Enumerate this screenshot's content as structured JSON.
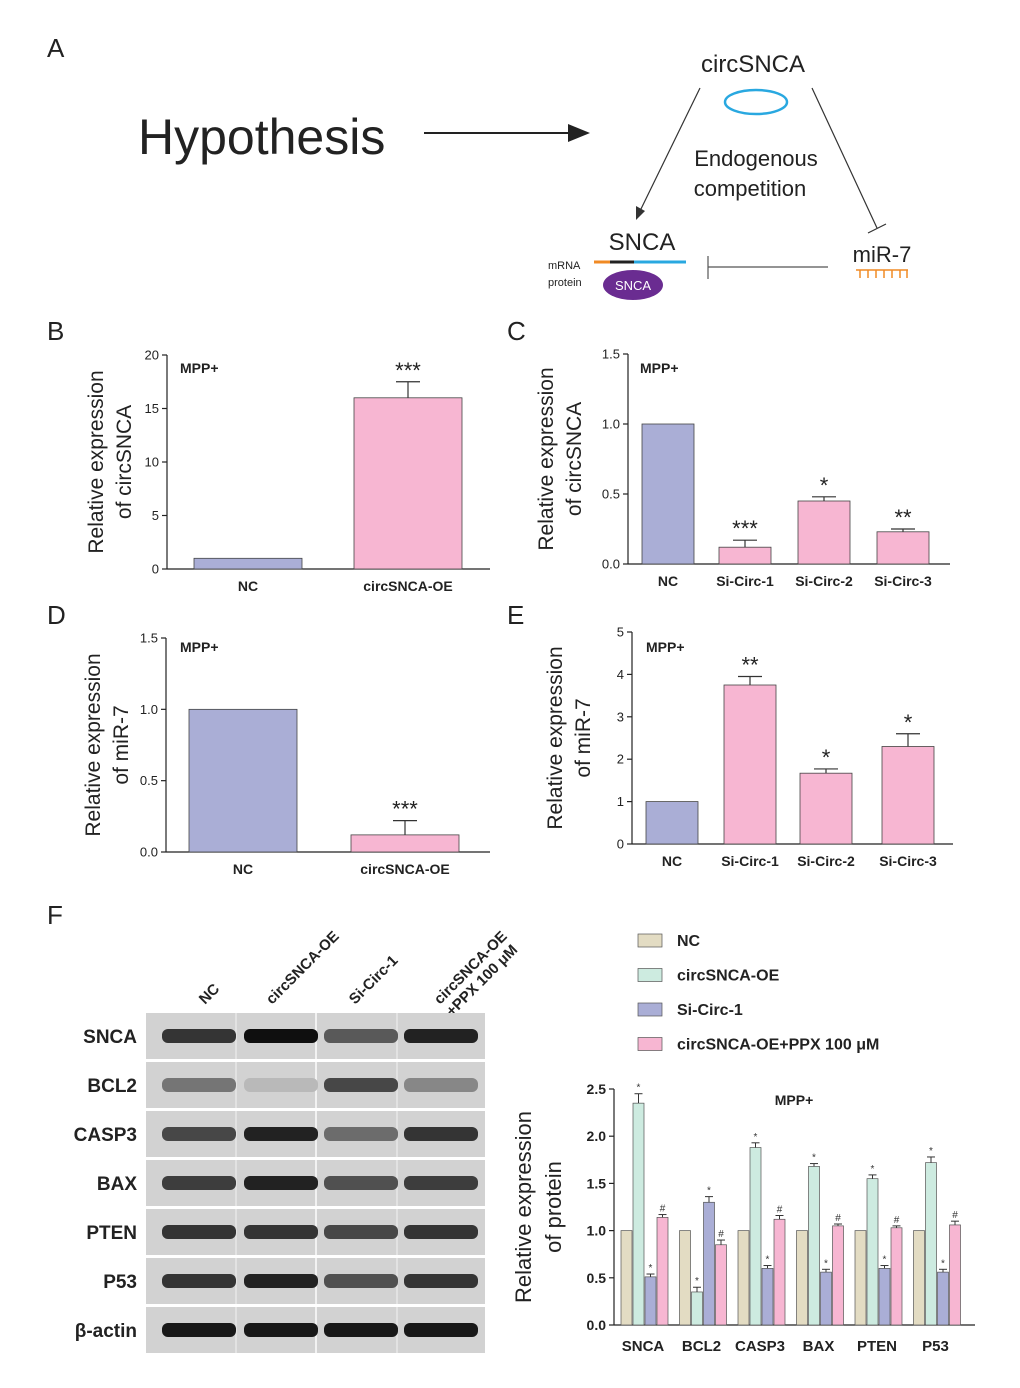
{
  "colors": {
    "nc": "#aaaed6",
    "pink": "#f7b6d2",
    "beige": "#e3dcc3",
    "mint": "#cdebe0",
    "blot_bg": "#cfcfcf",
    "ring": "#29a8e0",
    "purple": "#6a2c91",
    "orange": "#f08a24",
    "mrna_blue": "#29a8e0"
  },
  "panel_a": {
    "letter": "A",
    "hypothesis": "Hypothesis",
    "circ_label": "circSNCA",
    "competition_line1": "Endogenous",
    "competition_line2": "competition",
    "snca_label": "SNCA",
    "mirna_label": "miR-7",
    "mrna_label": "mRNA",
    "protein_label": "protein",
    "protein_blob_label": "SNCA"
  },
  "chart_data": [
    {
      "id": "B",
      "type": "bar",
      "annotation": "MPP+",
      "ylabel": [
        "Relative expression",
        "of circSNCA"
      ],
      "ylim": [
        0,
        20
      ],
      "yticks": [
        0,
        5,
        10,
        15,
        20
      ],
      "categories": [
        "NC",
        "circSNCA-OE"
      ],
      "values": [
        1.0,
        16.0
      ],
      "errors": [
        0,
        1.5
      ],
      "significance": [
        "",
        "***"
      ],
      "bar_colors": [
        "nc",
        "pink"
      ]
    },
    {
      "id": "C",
      "type": "bar",
      "annotation": "MPP+",
      "ylabel": [
        "Relative expression",
        "of circSNCA"
      ],
      "ylim": [
        0,
        1.5
      ],
      "yticks": [
        "0.0",
        "0.5",
        "1.0",
        "1.5"
      ],
      "categories": [
        "NC",
        "Si-Circ-1",
        "Si-Circ-2",
        "Si-Circ-3"
      ],
      "values": [
        1.0,
        0.12,
        0.45,
        0.23
      ],
      "errors": [
        0,
        0.05,
        0.03,
        0.02
      ],
      "significance": [
        "",
        "***",
        "*",
        "**"
      ],
      "bar_colors": [
        "nc",
        "pink",
        "pink",
        "pink"
      ]
    },
    {
      "id": "D",
      "type": "bar",
      "annotation": "MPP+",
      "ylabel": [
        "Relative expression",
        "of miR-7"
      ],
      "ylim": [
        0,
        1.5
      ],
      "yticks": [
        "0.0",
        "0.5",
        "1.0",
        "1.5"
      ],
      "categories": [
        "NC",
        "circSNCA-OE"
      ],
      "values": [
        1.0,
        0.12
      ],
      "errors": [
        0,
        0.1
      ],
      "significance": [
        "",
        "***"
      ],
      "bar_colors": [
        "nc",
        "pink"
      ]
    },
    {
      "id": "E",
      "type": "bar",
      "annotation": "MPP+",
      "ylabel": [
        "Relative expression",
        "of miR-7"
      ],
      "ylim": [
        0,
        5
      ],
      "yticks": [
        0,
        1,
        2,
        3,
        4,
        5
      ],
      "categories": [
        "NC",
        "Si-Circ-1",
        "Si-Circ-2",
        "Si-Circ-3"
      ],
      "values": [
        1.0,
        3.75,
        1.67,
        2.3
      ],
      "errors": [
        0,
        0.2,
        0.1,
        0.3
      ],
      "significance": [
        "",
        "**",
        "*",
        "*"
      ],
      "bar_colors": [
        "nc",
        "pink",
        "pink",
        "pink"
      ]
    },
    {
      "id": "F",
      "type": "bar",
      "annotation": "MPP+",
      "ylabel": [
        "Relative expression",
        "of protein"
      ],
      "ylim": [
        0,
        2.5
      ],
      "yticks": [
        "0.0",
        "0.5",
        "1.0",
        "1.5",
        "2.0",
        "2.5"
      ],
      "categories": [
        "SNCA",
        "BCL2",
        "CASP3",
        "BAX",
        "PTEN",
        "P53"
      ],
      "series": [
        {
          "name": "NC",
          "color": "beige",
          "values": [
            1.0,
            1.0,
            1.0,
            1.0,
            1.0,
            1.0
          ],
          "errors": [
            0,
            0,
            0,
            0,
            0,
            0
          ],
          "marks": [
            "",
            "",
            "",
            "",
            "",
            ""
          ]
        },
        {
          "name": "circSNCA-OE",
          "color": "mint",
          "values": [
            2.35,
            0.35,
            1.88,
            1.68,
            1.55,
            1.72
          ],
          "errors": [
            0.1,
            0.05,
            0.05,
            0.03,
            0.04,
            0.06
          ],
          "marks": [
            "*",
            "*",
            "*",
            "*",
            "*",
            "*"
          ]
        },
        {
          "name": "Si-Circ-1",
          "color": "nc",
          "values": [
            0.51,
            1.3,
            0.6,
            0.56,
            0.6,
            0.56
          ],
          "errors": [
            0.03,
            0.06,
            0.03,
            0.03,
            0.03,
            0.03
          ],
          "marks": [
            "*",
            "*",
            "*",
            "*",
            "*",
            "*"
          ]
        },
        {
          "name": "circSNCA-OE+PPX 100 μM",
          "color": "pink",
          "values": [
            1.14,
            0.85,
            1.12,
            1.05,
            1.03,
            1.06
          ],
          "errors": [
            0.03,
            0.05,
            0.04,
            0.02,
            0.02,
            0.04
          ],
          "marks": [
            "#",
            "#",
            "#",
            "#",
            "#",
            "#"
          ]
        }
      ]
    }
  ],
  "western_blot": {
    "lanes": [
      "NC",
      "circSNCA-OE",
      "Si-Circ-1",
      "circSNCA-OE\n+PPX 100 μM"
    ],
    "rows": [
      "SNCA",
      "BCL2",
      "CASP3",
      "BAX",
      "PTEN",
      "P53",
      "β-actin"
    ],
    "band_intensity": [
      [
        0.8,
        1.0,
        0.6,
        0.9
      ],
      [
        0.45,
        0.08,
        0.7,
        0.35
      ],
      [
        0.7,
        0.9,
        0.5,
        0.8
      ],
      [
        0.75,
        0.9,
        0.65,
        0.75
      ],
      [
        0.8,
        0.8,
        0.7,
        0.8
      ],
      [
        0.8,
        0.9,
        0.65,
        0.8
      ],
      [
        0.95,
        0.95,
        0.95,
        0.95
      ]
    ]
  }
}
